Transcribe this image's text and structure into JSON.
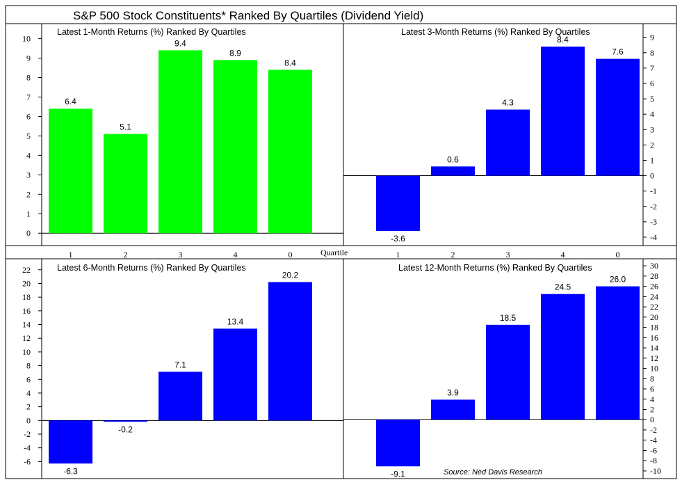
{
  "title": "S&P 500 Stock Constituents* Ranked By Quartiles (Dividend Yield)",
  "x_axis_label": "Quartile",
  "source": "Source: Ned Davis Research",
  "colors": {
    "green": "#00ff00",
    "blue": "#0000ff"
  },
  "chart_data": [
    {
      "type": "bar",
      "title": "Latest 1-Month Returns (%) Ranked By Quartiles",
      "categories": [
        "1",
        "2",
        "3",
        "4",
        "0"
      ],
      "values": [
        6.4,
        5.1,
        9.4,
        8.9,
        8.4
      ],
      "value_labels": [
        "6.4",
        "5.1",
        "9.4",
        "8.9",
        "8.4"
      ],
      "yticks": [
        "0",
        "1",
        "2",
        "3",
        "4",
        "5",
        "6",
        "7",
        "8",
        "9",
        "10"
      ],
      "ylim": [
        -0.6,
        10.7
      ],
      "axis_side": "left",
      "color": "green"
    },
    {
      "type": "bar",
      "title": "Latest 3-Month Returns (%) Ranked By Quartiles",
      "categories": [
        "1",
        "2",
        "3",
        "4",
        "0"
      ],
      "values": [
        -3.6,
        0.6,
        4.3,
        8.4,
        7.6
      ],
      "value_labels": [
        "-3.6",
        "0.6",
        "4.3",
        "8.4",
        "7.6"
      ],
      "yticks": [
        "-4",
        "-3",
        "-2",
        "-1",
        "0",
        "1",
        "2",
        "3",
        "4",
        "5",
        "6",
        "7",
        "8",
        "9"
      ],
      "ylim": [
        -4.5,
        9.8
      ],
      "axis_side": "right",
      "color": "blue"
    },
    {
      "type": "bar",
      "title": "Latest 6-Month Returns (%) Ranked By Quartiles",
      "categories": [
        "1",
        "2",
        "3",
        "4",
        "0"
      ],
      "values": [
        -6.3,
        -0.2,
        7.1,
        13.4,
        20.2
      ],
      "value_labels": [
        "-6.3",
        "-0.2",
        "7.1",
        "13.4",
        "20.2"
      ],
      "yticks": [
        "-6",
        "-4",
        "-2",
        "0",
        "2",
        "4",
        "6",
        "8",
        "10",
        "12",
        "14",
        "16",
        "18",
        "20",
        "22"
      ],
      "ylim": [
        -8.5,
        23.4
      ],
      "axis_side": "left",
      "color": "blue"
    },
    {
      "type": "bar",
      "title": "Latest 12-Month Returns (%) Ranked By Quartiles",
      "categories": [
        "1",
        "2",
        "3",
        "4",
        "0"
      ],
      "values": [
        -9.1,
        3.9,
        18.5,
        24.5,
        26.0
      ],
      "value_labels": [
        "-9.1",
        "3.9",
        "18.5",
        "24.5",
        "26.0"
      ],
      "yticks": [
        "-10",
        "-8",
        "-6",
        "-4",
        "-2",
        "0",
        "2",
        "4",
        "6",
        "8",
        "10",
        "12",
        "14",
        "16",
        "18",
        "20",
        "22",
        "24",
        "26",
        "28",
        "30"
      ],
      "ylim": [
        -11.5,
        31.1
      ],
      "axis_side": "right",
      "color": "blue"
    }
  ]
}
